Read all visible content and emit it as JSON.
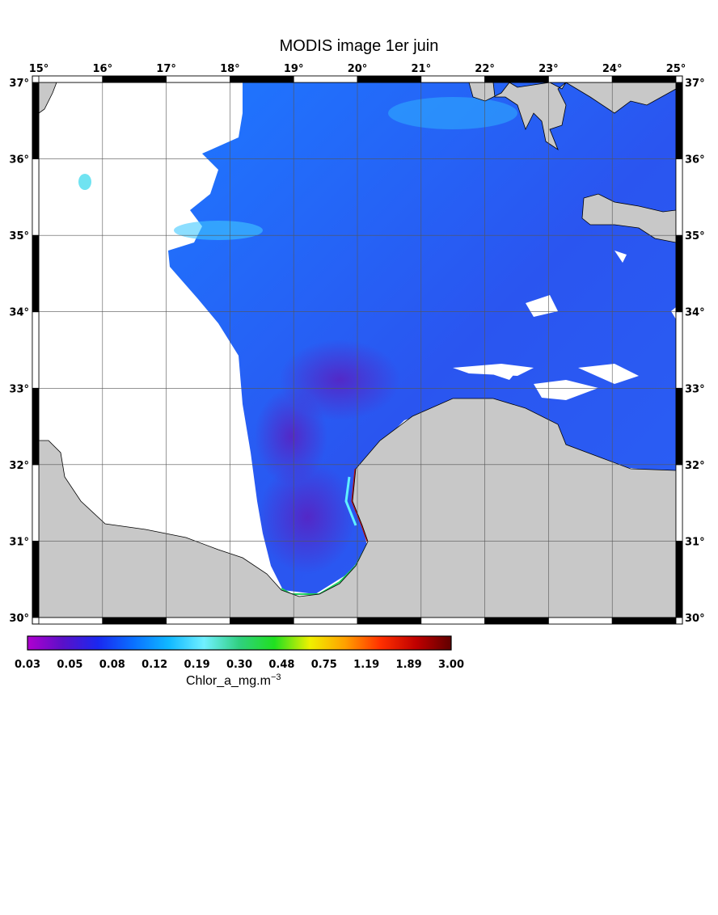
{
  "title": "MODIS image 1er juin",
  "map": {
    "lon_range": [
      15,
      25
    ],
    "lat_range": [
      30,
      37
    ],
    "lon_ticks": [
      "15",
      "16",
      "17",
      "18",
      "19",
      "20",
      "21",
      "22",
      "23",
      "24",
      "25"
    ],
    "lat_ticks": [
      "30",
      "31",
      "32",
      "33",
      "34",
      "35",
      "36",
      "37"
    ],
    "degree_mark": "°",
    "colors": {
      "land": "#c8c8c8",
      "no_data": "#ffffff",
      "water_base": "#1a5cf0",
      "offshore_low": "#4a2bd0",
      "coastal_high": "#c01010"
    }
  },
  "colorbar": {
    "labels": [
      "0.03",
      "0.05",
      "0.08",
      "0.12",
      "0.19",
      "0.30",
      "0.48",
      "0.75",
      "1.19",
      "1.89",
      "3.00"
    ],
    "title": "Chlor_a_mg.m",
    "title_sup": "−3",
    "stops": [
      "#b000d0",
      "#5a10c8",
      "#1a28f0",
      "#0a70ff",
      "#10b8ff",
      "#70f0ff",
      "#30d080",
      "#20e020",
      "#f0f000",
      "#ffa000",
      "#ff3000",
      "#c00000",
      "#600000"
    ]
  }
}
